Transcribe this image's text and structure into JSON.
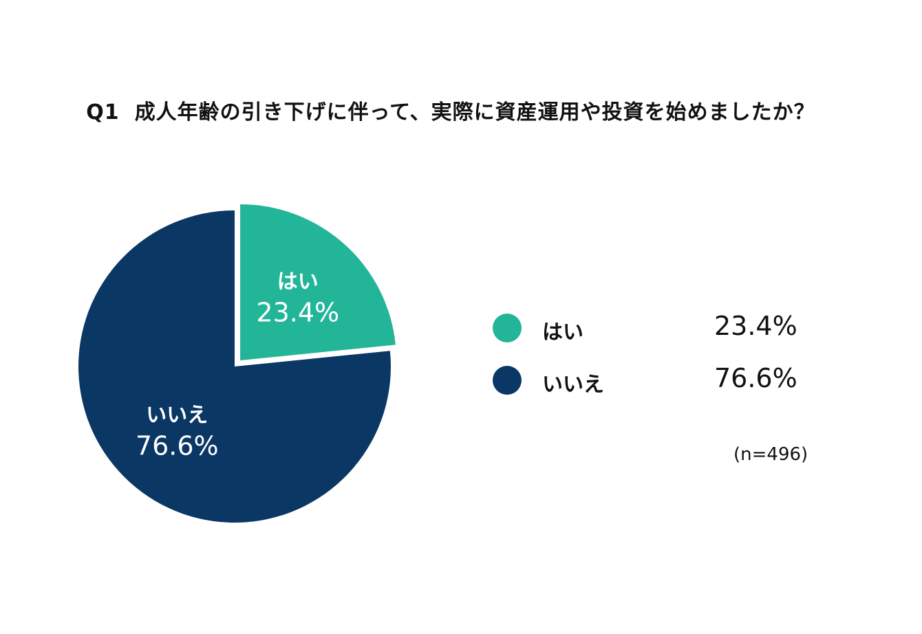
{
  "title": {
    "number": "Q1",
    "question": "成人年齢の引き下げに伴って、実際に資産運用や投資を始めましたか？"
  },
  "chart_data": {
    "type": "pie",
    "title": "Q1　成人年齢の引き下げに伴って、実際に資産運用や投資を始めましたか？",
    "categories": [
      "はい",
      "いいえ"
    ],
    "values": [
      23.4,
      76.6
    ],
    "labels": [
      "23.4%",
      "76.6%"
    ],
    "colors": [
      "#22b598",
      "#0a3763"
    ],
    "legend_placement": "right",
    "exploded_slice": "はい",
    "sample_size": "(n=496)"
  },
  "legend": {
    "items": [
      {
        "name": "はい",
        "value": "23.4%",
        "color": "#22b598"
      },
      {
        "name": "いいえ",
        "value": "76.6%",
        "color": "#0a3763"
      }
    ]
  },
  "note": "(n=496)"
}
